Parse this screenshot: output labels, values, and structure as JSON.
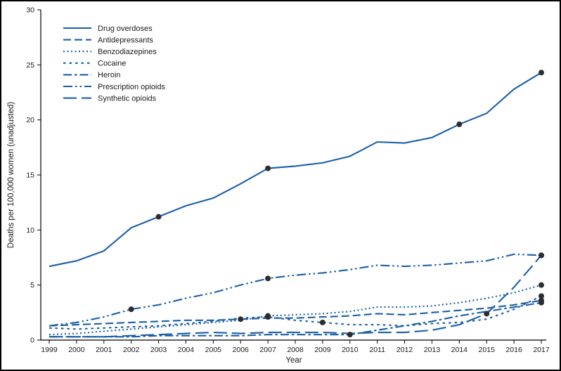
{
  "chart_data": {
    "type": "line",
    "title": "",
    "xlabel": "Year",
    "ylabel": "Deaths per 100,000 women (unadjusted)",
    "x": [
      1999,
      2000,
      2001,
      2002,
      2003,
      2004,
      2005,
      2006,
      2007,
      2008,
      2009,
      2010,
      2011,
      2012,
      2013,
      2014,
      2015,
      2016,
      2017
    ],
    "ylim": [
      0,
      30
    ],
    "yticks": [
      0,
      5,
      10,
      15,
      20,
      25,
      30
    ],
    "grid": false,
    "legend_position": "top-left",
    "line_color": "#1a5fa8",
    "marker_color": "#2d2d2d",
    "axis_color": "#000000",
    "series": [
      {
        "name": "Drug overdoses",
        "dash": "solid",
        "marker_years": [
          2003,
          2007,
          2014,
          2017
        ],
        "values": [
          6.7,
          7.2,
          8.1,
          10.2,
          11.2,
          12.2,
          12.9,
          14.2,
          15.6,
          15.8,
          16.1,
          16.7,
          18.0,
          17.9,
          18.4,
          19.6,
          20.6,
          22.8,
          24.3
        ]
      },
      {
        "name": "Antidepressants",
        "dash": "dash",
        "marker_years": [
          2006,
          2017
        ],
        "values": [
          1.3,
          1.4,
          1.5,
          1.6,
          1.7,
          1.8,
          1.8,
          1.9,
          2.0,
          2.0,
          2.1,
          2.2,
          2.4,
          2.3,
          2.5,
          2.7,
          2.9,
          3.2,
          3.6
        ]
      },
      {
        "name": "Benzodiazepines",
        "dash": "dot",
        "marker_years": [
          2007,
          2017
        ],
        "values": [
          0.5,
          0.6,
          0.8,
          1.0,
          1.2,
          1.4,
          1.6,
          1.8,
          2.2,
          2.3,
          2.4,
          2.6,
          3.0,
          3.0,
          3.1,
          3.4,
          3.8,
          4.3,
          5.0
        ]
      },
      {
        "name": "Cocaine",
        "dash": "shortdash",
        "marker_years": [
          2007,
          2009,
          2017
        ],
        "values": [
          1.1,
          1.0,
          1.1,
          1.2,
          1.3,
          1.5,
          1.7,
          2.0,
          2.1,
          1.8,
          1.6,
          1.4,
          1.4,
          1.3,
          1.5,
          1.6,
          1.9,
          2.8,
          4.0
        ]
      },
      {
        "name": "Heroin",
        "dash": "dashdot",
        "marker_years": [
          2010,
          2017
        ],
        "values": [
          0.3,
          0.3,
          0.3,
          0.3,
          0.4,
          0.4,
          0.4,
          0.4,
          0.5,
          0.5,
          0.5,
          0.5,
          0.9,
          1.3,
          1.7,
          2.2,
          2.6,
          3.0,
          3.4
        ]
      },
      {
        "name": "Prescription opioids",
        "dash": "dashdotdot",
        "marker_years": [
          2002,
          2007,
          2017
        ],
        "values": [
          1.3,
          1.6,
          2.1,
          2.8,
          3.2,
          3.8,
          4.3,
          5.0,
          5.6,
          5.9,
          6.1,
          6.4,
          6.8,
          6.7,
          6.8,
          7.0,
          7.2,
          7.8,
          7.7
        ]
      },
      {
        "name": "Synthetic opioids",
        "dash": "longdash",
        "marker_years": [
          2015,
          2017
        ],
        "values": [
          0.3,
          0.3,
          0.3,
          0.4,
          0.5,
          0.6,
          0.7,
          0.6,
          0.7,
          0.7,
          0.7,
          0.6,
          0.7,
          0.7,
          0.9,
          1.4,
          2.4,
          4.8,
          7.7
        ]
      }
    ]
  }
}
